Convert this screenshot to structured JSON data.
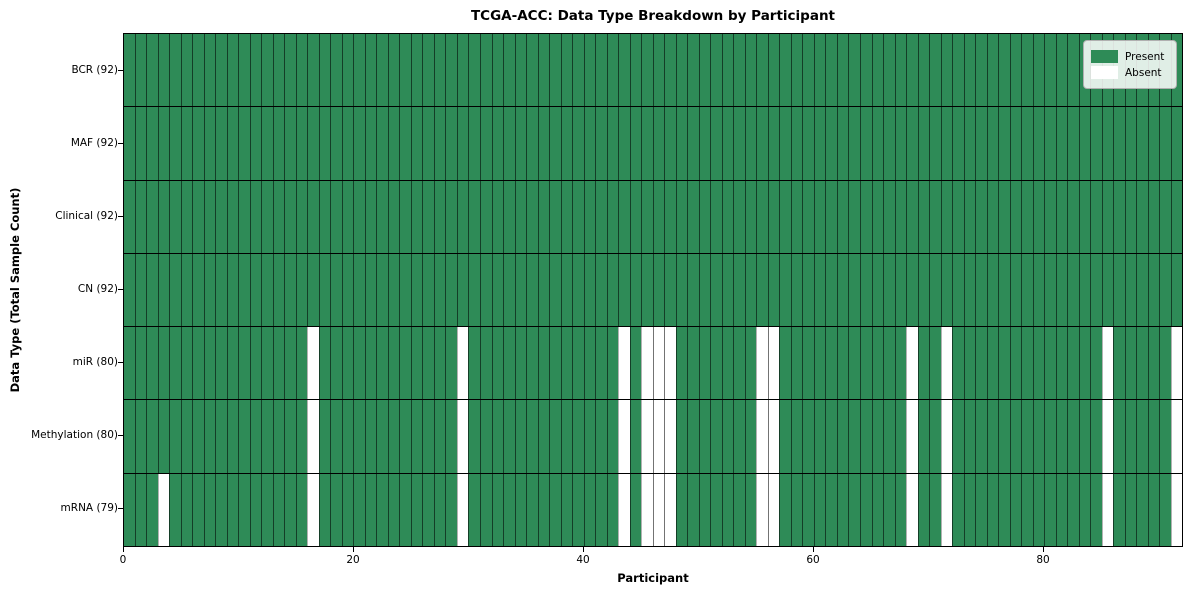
{
  "chart_data": {
    "type": "heatmap",
    "title": "TCGA-ACC: Data Type Breakdown by Participant",
    "xlabel": "Participant",
    "ylabel": "Data Type (Total Sample Count)",
    "n_participants": 92,
    "x_ticks": [
      0,
      20,
      40,
      60,
      80
    ],
    "rows": [
      {
        "label": "BCR (92)",
        "present_count": 92,
        "absent_indices": []
      },
      {
        "label": "MAF (92)",
        "present_count": 92,
        "absent_indices": []
      },
      {
        "label": "Clinical (92)",
        "present_count": 92,
        "absent_indices": []
      },
      {
        "label": "CN (92)",
        "present_count": 92,
        "absent_indices": []
      },
      {
        "label": "miR (80)",
        "present_count": 80,
        "absent_indices": [
          16,
          29,
          43,
          45,
          46,
          47,
          55,
          56,
          68,
          71,
          85,
          91
        ]
      },
      {
        "label": "Methylation (80)",
        "present_count": 80,
        "absent_indices": [
          16,
          29,
          43,
          45,
          46,
          47,
          55,
          56,
          68,
          71,
          85,
          91
        ]
      },
      {
        "label": "mRNA (79)",
        "present_count": 79,
        "absent_indices": [
          3,
          16,
          29,
          43,
          45,
          46,
          47,
          55,
          56,
          68,
          71,
          85,
          91
        ]
      }
    ],
    "legend": [
      {
        "label": "Present",
        "color": "#2e8b57"
      },
      {
        "label": "Absent",
        "color": "#ffffff"
      }
    ],
    "colors": {
      "present": "#2e8b57",
      "absent": "#ffffff"
    },
    "legend_position": "upper right",
    "grid": true
  }
}
